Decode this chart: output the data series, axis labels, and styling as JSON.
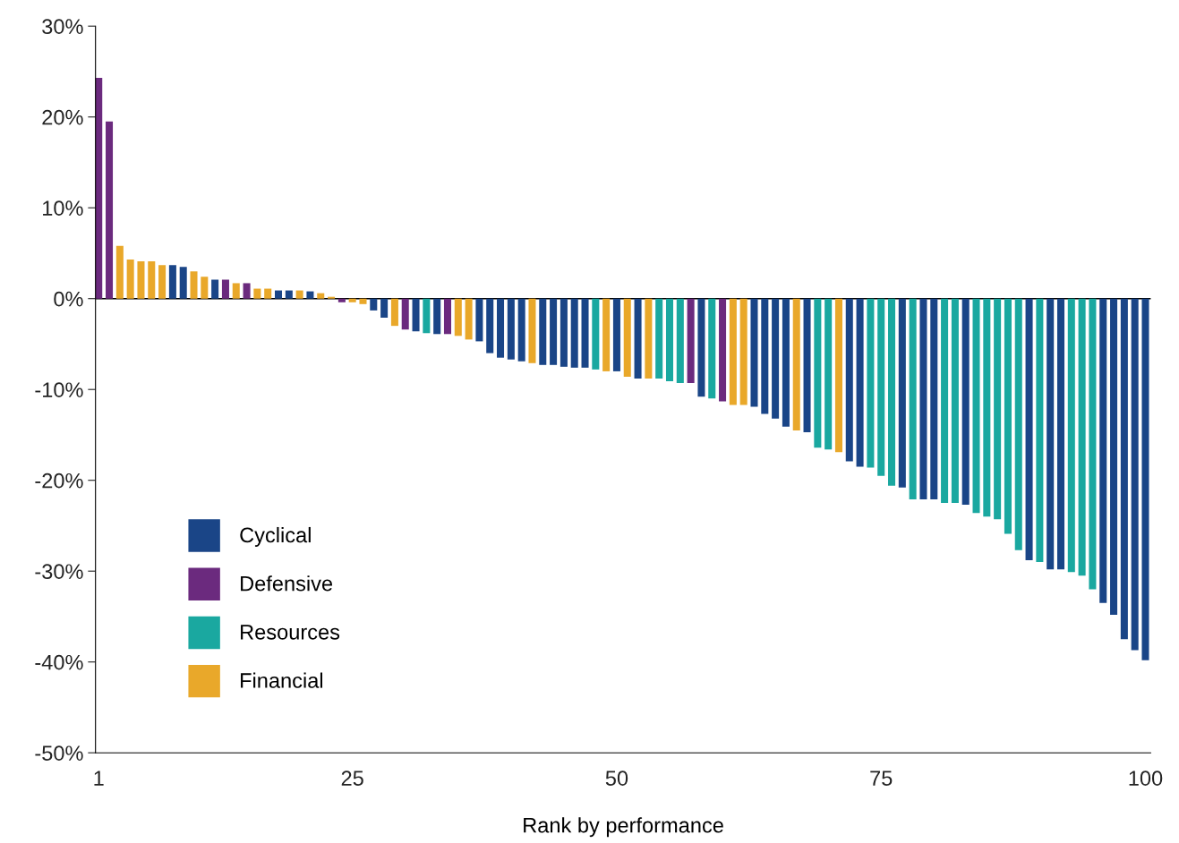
{
  "chart_data": {
    "type": "bar",
    "xlabel": "Rank by performance",
    "x": [
      1,
      2,
      3,
      4,
      5,
      6,
      7,
      8,
      9,
      10,
      11,
      12,
      13,
      14,
      15,
      16,
      17,
      18,
      19,
      20,
      21,
      22,
      23,
      24,
      25,
      26,
      27,
      28,
      29,
      30,
      31,
      32,
      33,
      34,
      35,
      36,
      37,
      38,
      39,
      40,
      41,
      42,
      43,
      44,
      45,
      46,
      47,
      48,
      49,
      50,
      51,
      52,
      53,
      54,
      55,
      56,
      57,
      58,
      59,
      60,
      61,
      62,
      63,
      64,
      65,
      66,
      67,
      68,
      69,
      70,
      71,
      72,
      73,
      74,
      75,
      76,
      77,
      78,
      79,
      80,
      81,
      82,
      83,
      84,
      85,
      86,
      87,
      88,
      89,
      90,
      91,
      92,
      93,
      94,
      95,
      96,
      97,
      98,
      99,
      100
    ],
    "series": [
      {
        "name": "Cyclical",
        "color": "#1a4587",
        "values": [
          null,
          null,
          null,
          null,
          null,
          null,
          null,
          3.7,
          3.5,
          null,
          null,
          2.1,
          null,
          null,
          null,
          null,
          null,
          0.9,
          0.9,
          null,
          0.8,
          null,
          null,
          null,
          null,
          null,
          -1.3,
          -2.1,
          null,
          null,
          -3.6,
          null,
          -3.9,
          null,
          null,
          null,
          -4.7,
          -6.0,
          -6.5,
          -6.7,
          -6.9,
          null,
          -7.3,
          -7.3,
          -7.5,
          -7.6,
          -7.6,
          null,
          null,
          -8.0,
          null,
          -8.8,
          null,
          null,
          null,
          null,
          null,
          -10.8,
          null,
          null,
          null,
          null,
          -11.9,
          -12.7,
          -13.2,
          -14.1,
          null,
          -14.7,
          null,
          null,
          null,
          -17.9,
          -18.5,
          null,
          null,
          null,
          -20.8,
          null,
          -22.1,
          -22.1,
          null,
          null,
          -22.7,
          null,
          null,
          null,
          null,
          null,
          -28.8,
          null,
          -29.8,
          -29.8,
          null,
          null,
          null,
          -33.5,
          -34.8,
          -37.5,
          -38.7,
          -39.8
        ]
      },
      {
        "name": "Defensive",
        "color": "#6b2a7e",
        "values": [
          24.3,
          19.5,
          null,
          null,
          null,
          null,
          null,
          null,
          null,
          null,
          null,
          null,
          2.1,
          null,
          1.7,
          null,
          null,
          null,
          null,
          null,
          null,
          null,
          null,
          -0.4,
          null,
          null,
          null,
          null,
          null,
          -3.4,
          null,
          null,
          null,
          -3.9,
          null,
          null,
          null,
          null,
          null,
          null,
          null,
          null,
          null,
          null,
          null,
          null,
          null,
          null,
          null,
          null,
          null,
          null,
          null,
          null,
          null,
          null,
          -9.3,
          null,
          null,
          -11.3,
          null,
          null,
          null,
          null,
          null,
          null,
          null,
          null,
          null,
          null,
          null,
          null,
          null,
          null,
          null,
          null,
          null,
          null,
          null,
          null,
          null,
          null,
          null,
          null,
          null,
          null,
          null,
          null,
          null,
          null,
          null,
          null,
          null,
          null,
          null,
          null,
          null,
          null,
          null,
          null
        ]
      },
      {
        "name": "Resources",
        "color": "#1aa8a0",
        "values": [
          null,
          null,
          null,
          null,
          null,
          null,
          null,
          null,
          null,
          null,
          null,
          null,
          null,
          null,
          null,
          null,
          null,
          null,
          null,
          null,
          null,
          null,
          null,
          null,
          null,
          null,
          null,
          null,
          null,
          null,
          null,
          -3.8,
          null,
          null,
          null,
          null,
          null,
          null,
          null,
          null,
          null,
          null,
          null,
          null,
          null,
          null,
          null,
          -7.8,
          null,
          null,
          null,
          null,
          null,
          -8.8,
          -9.1,
          -9.3,
          null,
          null,
          -11.0,
          null,
          null,
          null,
          null,
          null,
          null,
          null,
          null,
          null,
          -16.4,
          -16.6,
          null,
          null,
          null,
          -18.6,
          -19.5,
          -20.6,
          null,
          -22.1,
          null,
          null,
          -22.5,
          -22.5,
          null,
          -23.6,
          -24.0,
          -24.3,
          -25.9,
          -27.7,
          null,
          -29.0,
          null,
          null,
          -30.1,
          -30.5,
          -32.0,
          null,
          null,
          null,
          null,
          null
        ]
      },
      {
        "name": "Financial",
        "color": "#e9a82a",
        "values": [
          null,
          null,
          5.8,
          4.3,
          4.1,
          4.1,
          3.7,
          null,
          null,
          3.0,
          2.4,
          null,
          null,
          1.7,
          null,
          1.1,
          1.1,
          null,
          null,
          0.9,
          null,
          0.6,
          0.2,
          null,
          -0.4,
          -0.6,
          null,
          null,
          -3.0,
          null,
          null,
          null,
          null,
          null,
          -4.1,
          -4.5,
          null,
          null,
          null,
          null,
          null,
          -7.1,
          null,
          null,
          null,
          null,
          null,
          null,
          -8.0,
          null,
          -8.6,
          null,
          -8.8,
          null,
          null,
          null,
          null,
          null,
          null,
          null,
          -11.7,
          -11.7,
          null,
          null,
          null,
          null,
          -14.5,
          null,
          null,
          null,
          -16.9,
          null,
          null,
          null,
          null,
          null,
          null,
          null,
          null,
          null,
          null,
          null,
          null,
          null,
          null,
          null,
          null,
          null,
          null,
          null,
          null,
          null,
          null,
          null,
          null,
          null,
          null,
          null,
          null,
          null
        ]
      }
    ],
    "xlim": [
      0.7,
      100.5
    ],
    "xticks": [
      1,
      25,
      50,
      75,
      100
    ],
    "ylim": [
      -50,
      30
    ],
    "yticks": [
      {
        "value": 30,
        "label": "30%"
      },
      {
        "value": 20,
        "label": "20%"
      },
      {
        "value": 10,
        "label": "10%"
      },
      {
        "value": 0,
        "label": "0%"
      },
      {
        "value": -10,
        "label": "-10%"
      },
      {
        "value": -20,
        "label": "-20%"
      },
      {
        "value": -30,
        "label": "-30%"
      },
      {
        "value": -40,
        "label": "-40%"
      },
      {
        "value": -50,
        "label": "-50%"
      }
    ],
    "ref_lines": [
      {
        "axis": "y",
        "value": 0,
        "color": "#000000"
      }
    ],
    "legend": "bottom left",
    "grid": false
  }
}
